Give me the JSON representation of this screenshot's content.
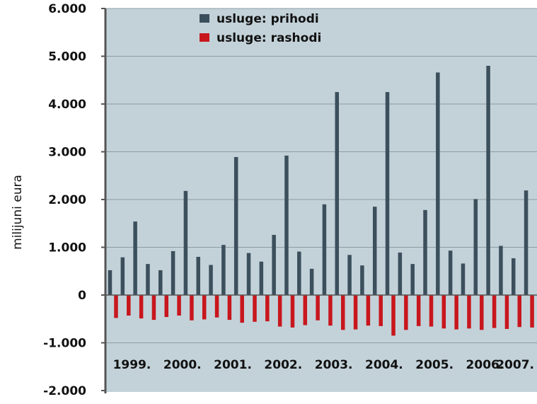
{
  "chart_data": {
    "type": "bar",
    "title": "",
    "xlabel": "",
    "ylabel": "milijuni eura",
    "ylim": [
      -2000,
      6000
    ],
    "y_ticks": [
      -2000,
      -1000,
      0,
      1000,
      2000,
      3000,
      4000,
      5000,
      6000
    ],
    "y_tick_labels": [
      "-2.000",
      "-1.000",
      "0",
      "1.000",
      "2.000",
      "3.000",
      "4.000",
      "5.000",
      "6.000"
    ],
    "grid": "horizontal",
    "legend_position": "top-center",
    "year_labels": [
      "1999.",
      "2000.",
      "2001.",
      "2002.",
      "2003.",
      "2004.",
      "2005.",
      "2006.",
      "2007."
    ],
    "quarters_per_year": 4,
    "series": [
      {
        "name": "usluge: prihodi",
        "color": "#3c4f5c",
        "values": [
          520,
          790,
          1540,
          650,
          520,
          920,
          2180,
          800,
          630,
          1050,
          2890,
          880,
          700,
          1260,
          2920,
          910,
          550,
          1900,
          4250,
          840,
          620,
          1850,
          4250,
          890,
          650,
          1780,
          4660,
          930,
          660,
          2010,
          4800,
          1030,
          770,
          2190
        ]
      },
      {
        "name": "usluge: rashodi",
        "color": "#c8161d",
        "values": [
          -480,
          -430,
          -490,
          -520,
          -460,
          -430,
          -530,
          -510,
          -470,
          -520,
          -580,
          -560,
          -550,
          -660,
          -680,
          -630,
          -530,
          -640,
          -730,
          -720,
          -640,
          -650,
          -850,
          -730,
          -650,
          -660,
          -700,
          -720,
          -700,
          -730,
          -690,
          -710,
          -670,
          -680
        ]
      }
    ],
    "colors": {
      "plot_background": "#c3d2d9",
      "axis": "#555555",
      "grid": "#8d9ca3"
    }
  }
}
